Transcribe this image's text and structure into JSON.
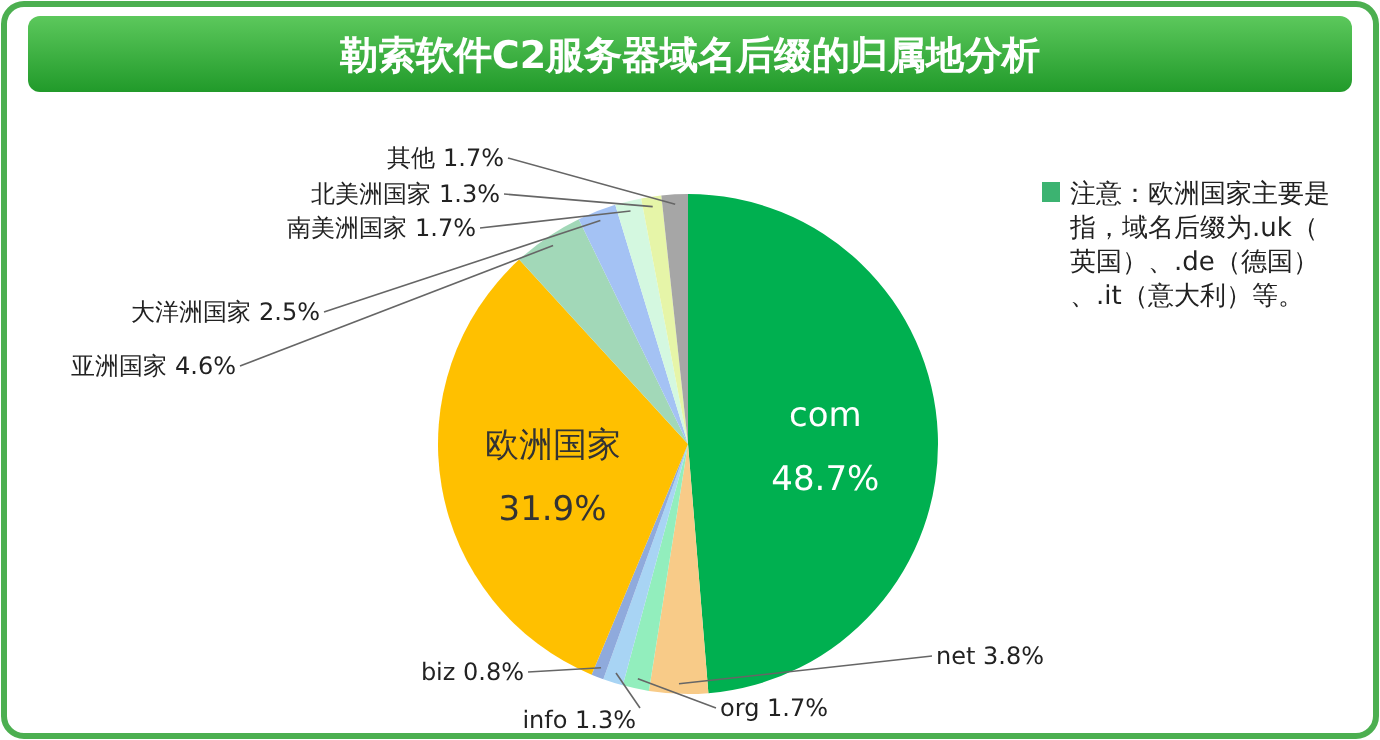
{
  "chart_data": {
    "type": "pie",
    "title": "勒索软件C2服务器域名后缀的归属地分析",
    "categories": [
      "com",
      "net",
      "org",
      "info",
      "biz",
      "欧洲国家",
      "亚洲国家",
      "大洋洲国家",
      "南美洲国家",
      "北美洲国家",
      "其他"
    ],
    "values": [
      48.7,
      3.8,
      1.7,
      1.3,
      0.8,
      31.9,
      4.6,
      2.5,
      1.7,
      1.3,
      1.7
    ],
    "colors": [
      "#00b050",
      "#f8cb88",
      "#92eebd",
      "#a8d4f4",
      "#8faadc",
      "#ffc000",
      "#a2d8b8",
      "#a4c2f4",
      "#d4f8e0",
      "#e6f5a8",
      "#a6a6a6"
    ],
    "value_labels": [
      "48.7%",
      "3.8%",
      "1.7%",
      "1.3%",
      "0.8%",
      "31.9%",
      "4.6%",
      "2.5%",
      "1.7%",
      "1.3%",
      "1.7%"
    ],
    "annotations": [
      "注意：欧洲国家主要是指，域名后缀为.uk（英国）、.de（德国）、.it（意大利）等。"
    ]
  }
}
